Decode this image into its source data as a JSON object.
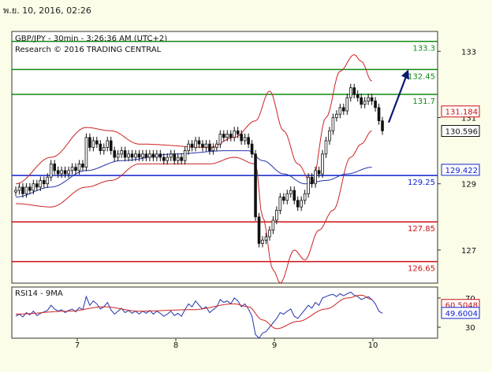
{
  "header": {
    "timestamp": "พ.ย. 10, 2016, 02:26"
  },
  "chart_data": [
    {
      "type": "candlestick",
      "title": "GBP/JPY - 30min - 3:26:36 AM (UTC+2)",
      "subtitle": "Research © 2016 TRADING CENTRAL",
      "ylim": [
        126.0,
        133.6
      ],
      "y_ticks": [
        "133",
        "131",
        "129",
        "127"
      ],
      "x_ticks": [
        "7",
        "8",
        "9",
        "10"
      ],
      "colors": {
        "candles": "#111111",
        "bollinger": "#cc2222",
        "ma": "#2233aa",
        "resistance": "#118811",
        "support": "#cc1111",
        "pivot": "#1122cc",
        "arrow": "#0a1a6e"
      },
      "levels": [
        {
          "label": "133.3",
          "value": 133.3,
          "kind": "resistance"
        },
        {
          "label": "132.45",
          "value": 132.45,
          "kind": "resistance"
        },
        {
          "label": "131.7",
          "value": 131.7,
          "kind": "resistance"
        },
        {
          "label": "129.25",
          "value": 129.25,
          "kind": "pivot"
        },
        {
          "label": "127.85",
          "value": 127.85,
          "kind": "support"
        },
        {
          "label": "126.65",
          "value": 126.65,
          "kind": "support"
        }
      ],
      "price_boxes": [
        {
          "label": "131.184",
          "value": 131.184,
          "color": "#cc1111"
        },
        {
          "label": "130.596",
          "value": 130.596,
          "color": "#111111"
        },
        {
          "label": "129.422",
          "value": 129.422,
          "color": "#1122cc"
        }
      ],
      "series": {
        "close": [
          128.8,
          128.9,
          128.7,
          128.9,
          128.8,
          129.0,
          128.9,
          129.1,
          129.0,
          129.2,
          129.6,
          129.4,
          129.3,
          129.4,
          129.3,
          129.4,
          129.5,
          129.4,
          129.6,
          129.5,
          130.4,
          130.1,
          130.3,
          130.2,
          130.0,
          130.1,
          130.3,
          130.0,
          129.8,
          129.9,
          130.0,
          129.8,
          129.9,
          129.8,
          129.9,
          129.8,
          129.9,
          129.8,
          129.9,
          129.8,
          129.9,
          129.8,
          129.7,
          129.8,
          129.9,
          129.7,
          129.8,
          129.7,
          130.0,
          130.2,
          130.1,
          130.3,
          130.2,
          130.1,
          130.2,
          130.0,
          130.1,
          130.2,
          130.5,
          130.4,
          130.5,
          130.4,
          130.6,
          130.5,
          130.3,
          130.4,
          130.2,
          129.9,
          128.0,
          127.2,
          127.3,
          127.4,
          127.6,
          127.9,
          128.2,
          128.6,
          128.5,
          128.7,
          128.8,
          128.5,
          128.3,
          128.5,
          128.7,
          129.2,
          129.0,
          129.4,
          129.3,
          129.9,
          130.3,
          130.6,
          131.0,
          131.1,
          131.3,
          131.2,
          131.6,
          131.9,
          131.7,
          131.6,
          131.4,
          131.5,
          131.6,
          131.5,
          131.3,
          130.9,
          130.6
        ],
        "bb_upper_knots": [
          [
            0,
            129.0
          ],
          [
            10,
            129.8
          ],
          [
            20,
            130.7
          ],
          [
            27,
            130.6
          ],
          [
            35,
            130.2
          ],
          [
            55,
            130.1
          ],
          [
            62,
            130.4
          ],
          [
            68,
            130.9
          ],
          [
            72,
            131.8
          ],
          [
            76,
            130.6
          ],
          [
            80,
            129.6
          ],
          [
            84,
            129.0
          ],
          [
            88,
            131.0
          ],
          [
            92,
            132.4
          ],
          [
            96,
            132.9
          ],
          [
            98,
            132.7
          ],
          [
            101,
            132.1
          ]
        ],
        "bb_lower_knots": [
          [
            0,
            128.4
          ],
          [
            10,
            128.3
          ],
          [
            20,
            128.9
          ],
          [
            27,
            129.1
          ],
          [
            35,
            129.6
          ],
          [
            55,
            129.6
          ],
          [
            62,
            129.8
          ],
          [
            68,
            129.6
          ],
          [
            70,
            128.0
          ],
          [
            73,
            126.4
          ],
          [
            75,
            126.0
          ],
          [
            79,
            127.0
          ],
          [
            82,
            126.7
          ],
          [
            86,
            127.6
          ],
          [
            90,
            128.2
          ],
          [
            95,
            129.8
          ],
          [
            98,
            130.2
          ],
          [
            101,
            130.6
          ]
        ],
        "ma_knots": [
          [
            0,
            128.6
          ],
          [
            10,
            128.9
          ],
          [
            20,
            129.4
          ],
          [
            30,
            129.7
          ],
          [
            45,
            129.9
          ],
          [
            60,
            130.0
          ],
          [
            66,
            130.0
          ],
          [
            70,
            129.7
          ],
          [
            76,
            129.3
          ],
          [
            82,
            129.0
          ],
          [
            88,
            129.1
          ],
          [
            94,
            129.3
          ],
          [
            101,
            129.5
          ]
        ],
        "rsi": [
          45,
          48,
          44,
          50,
          47,
          52,
          46,
          49,
          51,
          53,
          60,
          55,
          52,
          54,
          50,
          53,
          55,
          51,
          57,
          54,
          72,
          60,
          66,
          62,
          55,
          58,
          64,
          54,
          48,
          52,
          56,
          50,
          53,
          49,
          52,
          48,
          52,
          49,
          53,
          48,
          52,
          49,
          45,
          48,
          52,
          46,
          49,
          45,
          54,
          62,
          58,
          66,
          60,
          55,
          58,
          50,
          54,
          58,
          68,
          64,
          66,
          62,
          70,
          66,
          58,
          62,
          55,
          45,
          20,
          15,
          22,
          24,
          30,
          36,
          42,
          50,
          48,
          52,
          55,
          45,
          42,
          48,
          54,
          60,
          56,
          64,
          60,
          70,
          72,
          74,
          75,
          72,
          76,
          73,
          76,
          78,
          74,
          72,
          68,
          70,
          72,
          68,
          62,
          52,
          49
        ],
        "rsi_ma_knots": [
          [
            0,
            48
          ],
          [
            15,
            52
          ],
          [
            25,
            58
          ],
          [
            35,
            52
          ],
          [
            50,
            54
          ],
          [
            62,
            62
          ],
          [
            66,
            58
          ],
          [
            70,
            40
          ],
          [
            74,
            28
          ],
          [
            80,
            38
          ],
          [
            88,
            55
          ],
          [
            94,
            70
          ],
          [
            98,
            74
          ],
          [
            101,
            68
          ]
        ]
      },
      "rsi_panel": {
        "title": "RSI14 - 9MA",
        "ylim": [
          15,
          85
        ],
        "y_ticks": [
          "70",
          "30"
        ],
        "boxes": [
          {
            "label": "60.5048",
            "value": 60.5048,
            "color": "#cc1111"
          },
          {
            "label": "49.6004",
            "value": 49.6004,
            "color": "#1122cc"
          }
        ]
      }
    }
  ]
}
